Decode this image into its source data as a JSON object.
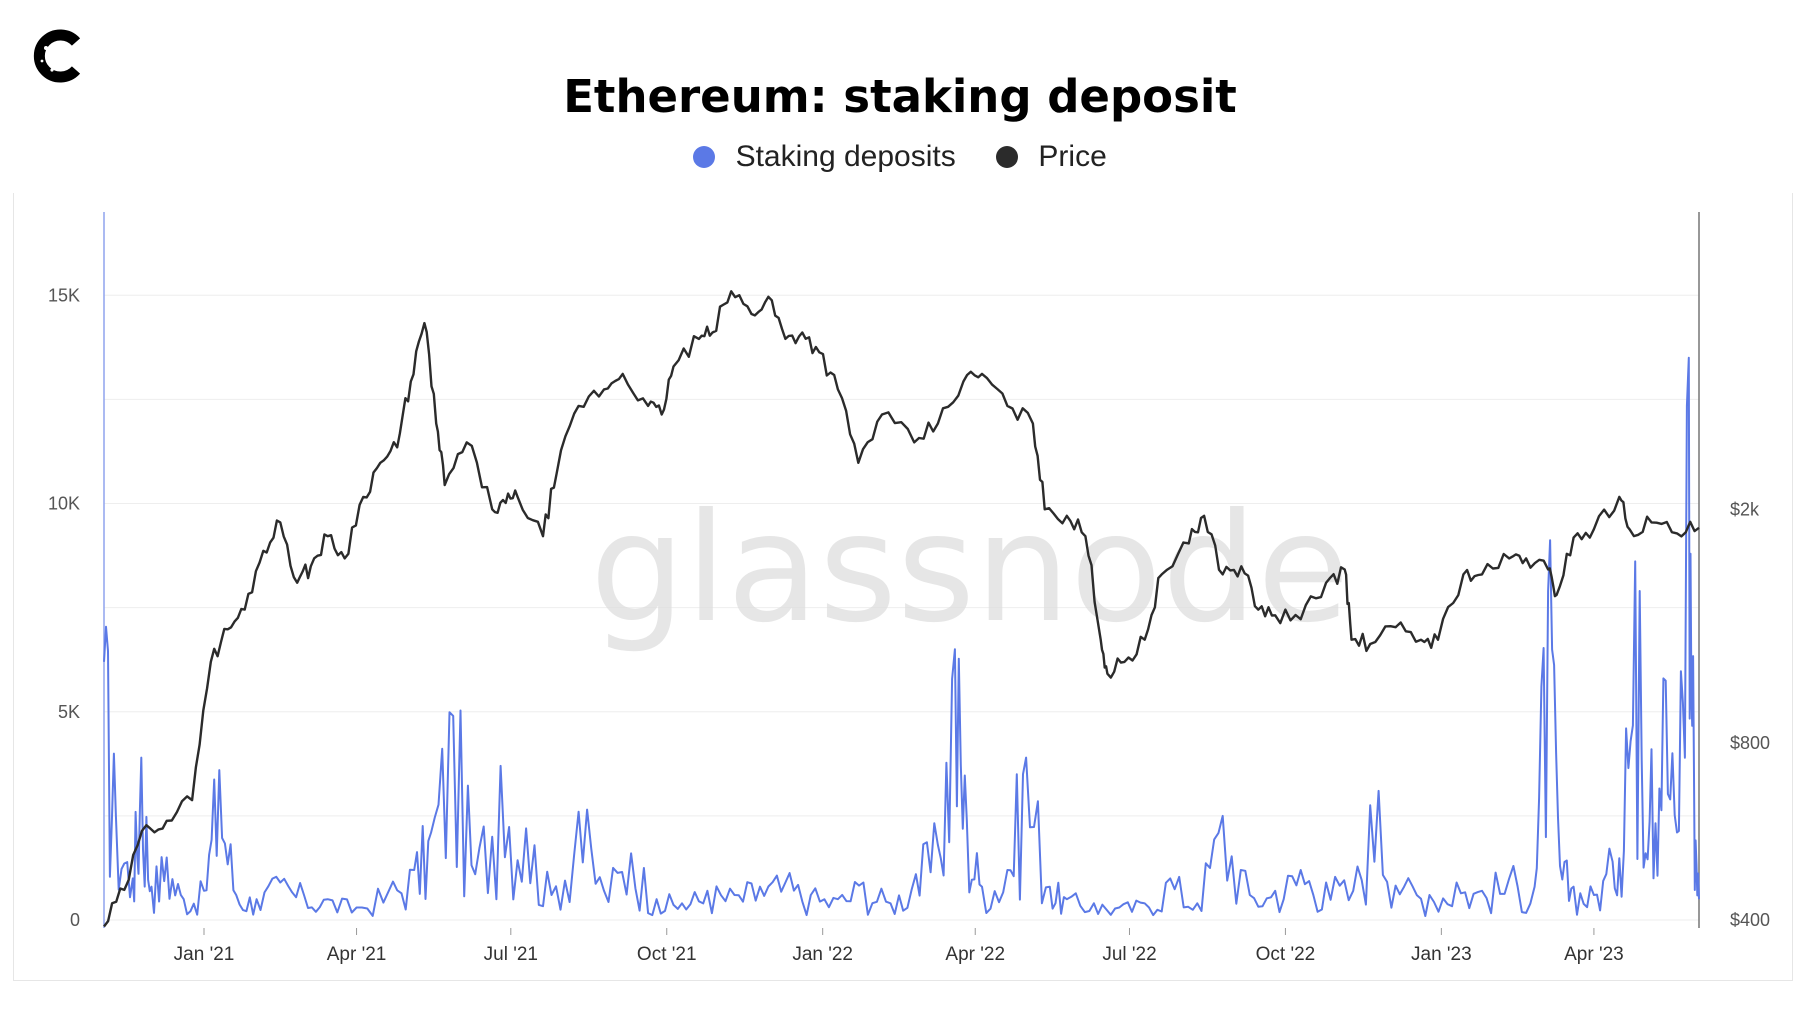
{
  "logo": {
    "icon": "c-brand-logo-icon"
  },
  "watermark": "glassnode",
  "chart_data": {
    "type": "line",
    "title": "Ethereum: staking deposit",
    "legend_placement": "top-center",
    "grid": true,
    "x_range": [
      "2020-11-03",
      "2023-06-02"
    ],
    "x_ticks": [
      "Jan '21",
      "Apr '21",
      "Jul '21",
      "Oct '21",
      "Jan '22",
      "Apr '22",
      "Jul '22",
      "Oct '22",
      "Jan '23",
      "Apr '23"
    ],
    "left_axis": {
      "ticks": [
        "0",
        "5K",
        "10K",
        "15K"
      ],
      "ylim": [
        0,
        17000
      ]
    },
    "right_axis": {
      "ticks": [
        "$400",
        "$800",
        "$2k"
      ],
      "scale": "log"
    },
    "series": [
      {
        "name": "Staking deposits",
        "color": "#5b79e6",
        "axis": "left",
        "x": [
          "2020-11-03",
          "2020-11-10",
          "2020-11-20",
          "2020-11-25",
          "2020-12-01",
          "2020-12-10",
          "2020-12-20",
          "2021-01-01",
          "2021-01-10",
          "2021-01-20",
          "2021-02-01",
          "2021-02-15",
          "2021-03-01",
          "2021-03-15",
          "2021-04-01",
          "2021-04-20",
          "2021-05-05",
          "2021-05-15",
          "2021-05-28",
          "2021-06-10",
          "2021-06-25",
          "2021-07-10",
          "2021-07-25",
          "2021-08-10",
          "2021-08-25",
          "2021-09-10",
          "2021-09-25",
          "2021-10-10",
          "2021-10-25",
          "2021-11-10",
          "2021-11-25",
          "2021-12-10",
          "2021-12-25",
          "2022-01-10",
          "2022-01-25",
          "2022-02-10",
          "2022-02-25",
          "2022-03-10",
          "2022-03-20",
          "2022-03-27",
          "2022-04-05",
          "2022-04-20",
          "2022-05-01",
          "2022-05-15",
          "2022-05-25",
          "2022-06-10",
          "2022-06-25",
          "2022-07-10",
          "2022-07-25",
          "2022-08-10",
          "2022-08-25",
          "2022-09-10",
          "2022-09-25",
          "2022-10-10",
          "2022-10-25",
          "2022-11-10",
          "2022-11-25",
          "2022-12-10",
          "2022-12-25",
          "2023-01-10",
          "2023-01-25",
          "2023-02-10",
          "2023-02-25",
          "2023-03-05",
          "2023-03-12",
          "2023-03-20",
          "2023-04-01",
          "2023-04-12",
          "2023-04-20",
          "2023-04-28",
          "2023-05-05",
          "2023-05-12",
          "2023-05-20",
          "2023-05-27",
          "2023-05-30",
          "2023-06-02"
        ],
        "values": [
          6200,
          2500,
          1000,
          3900,
          800,
          1500,
          500,
          700,
          3600,
          600,
          500,
          900,
          600,
          500,
          300,
          700,
          1200,
          2100,
          4900,
          1100,
          3700,
          2200,
          600,
          2600,
          700,
          1600,
          500,
          400,
          700,
          600,
          800,
          900,
          600,
          500,
          900,
          400,
          1100,
          1800,
          6500,
          2400,
          800,
          1200,
          3900,
          800,
          500,
          400,
          300,
          400,
          1000,
          400,
          2500,
          600,
          700,
          1200,
          900,
          700,
          3100,
          800,
          600,
          900,
          700,
          1000,
          800,
          7900,
          1300,
          800,
          600,
          1400,
          4600,
          7900,
          4100,
          5800,
          2100,
          13500,
          3800,
          500
        ]
      },
      {
        "name": "Price",
        "color": "#2b2b2b",
        "axis": "right",
        "unit": "USD",
        "x": [
          "2020-11-03",
          "2020-11-15",
          "2020-11-28",
          "2020-12-10",
          "2020-12-25",
          "2021-01-05",
          "2021-01-15",
          "2021-01-25",
          "2021-02-05",
          "2021-02-15",
          "2021-02-25",
          "2021-03-05",
          "2021-03-15",
          "2021-03-25",
          "2021-04-05",
          "2021-04-15",
          "2021-04-25",
          "2021-05-03",
          "2021-05-11",
          "2021-05-18",
          "2021-05-23",
          "2021-06-05",
          "2021-06-20",
          "2021-06-28",
          "2021-07-05",
          "2021-07-20",
          "2021-07-28",
          "2021-08-10",
          "2021-08-25",
          "2021-09-05",
          "2021-09-20",
          "2021-09-28",
          "2021-10-05",
          "2021-10-20",
          "2021-10-28",
          "2021-11-08",
          "2021-11-20",
          "2021-11-30",
          "2021-12-10",
          "2021-12-20",
          "2021-12-30",
          "2022-01-10",
          "2022-01-22",
          "2022-02-05",
          "2022-02-24",
          "2022-03-10",
          "2022-03-25",
          "2022-04-05",
          "2022-04-20",
          "2022-05-05",
          "2022-05-12",
          "2022-05-25",
          "2022-06-05",
          "2022-06-14",
          "2022-06-18",
          "2022-06-28",
          "2022-07-10",
          "2022-07-20",
          "2022-08-05",
          "2022-08-14",
          "2022-08-25",
          "2022-09-05",
          "2022-09-15",
          "2022-09-25",
          "2022-10-10",
          "2022-10-25",
          "2022-11-05",
          "2022-11-09",
          "2022-11-20",
          "2022-12-05",
          "2022-12-20",
          "2022-12-30",
          "2023-01-14",
          "2023-01-25",
          "2023-02-10",
          "2023-02-20",
          "2023-03-05",
          "2023-03-10",
          "2023-03-20",
          "2023-04-01",
          "2023-04-16",
          "2023-04-22",
          "2023-05-05",
          "2023-05-20",
          "2023-06-02"
        ],
        "values": [
          390,
          450,
          580,
          590,
          640,
          1100,
          1250,
          1350,
          1700,
          1900,
          1500,
          1600,
          1800,
          1650,
          2100,
          2400,
          2550,
          3300,
          4150,
          2800,
          2200,
          2600,
          2000,
          2050,
          2100,
          1800,
          2300,
          3000,
          3200,
          3400,
          3000,
          2900,
          3500,
          3900,
          4000,
          4700,
          4300,
          4600,
          3900,
          4000,
          3700,
          3200,
          2400,
          2900,
          2600,
          2800,
          3300,
          3400,
          3000,
          2800,
          2000,
          1950,
          1800,
          1200,
          1050,
          1100,
          1200,
          1550,
          1750,
          1950,
          1550,
          1600,
          1350,
          1320,
          1300,
          1500,
          1580,
          1200,
          1180,
          1260,
          1200,
          1200,
          1550,
          1550,
          1650,
          1650,
          1580,
          1430,
          1790,
          1850,
          2100,
          1850,
          1900,
          1820,
          1860
        ]
      }
    ]
  }
}
